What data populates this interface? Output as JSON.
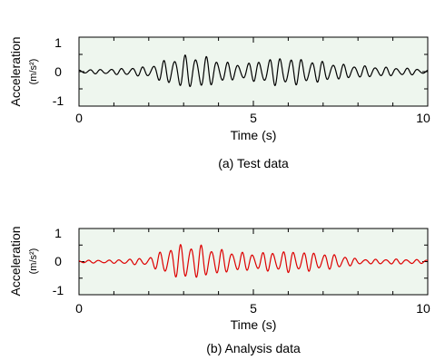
{
  "chart_data": [
    {
      "type": "line",
      "caption": "(a) Test data",
      "xlabel": "Time (s)",
      "ylabel": "Acceleration",
      "yunit": "(m/s²)",
      "xlim": [
        0,
        10
      ],
      "ylim": [
        -1,
        1
      ],
      "xticks": [
        0,
        5,
        10
      ],
      "yticks": [
        -1,
        0,
        1
      ],
      "background_color": "#eef6ee",
      "line_color": "#000000",
      "grid": false,
      "series": [
        {
          "dominant_freq_hz": 3.3,
          "x": [
            0,
            1,
            2,
            2.5,
            3,
            3.5,
            4,
            4.5,
            5,
            5.5,
            6,
            6.5,
            7,
            7.5,
            8,
            8.5,
            9,
            9.5,
            10
          ],
          "amplitude": [
            0.05,
            0.08,
            0.15,
            0.35,
            0.48,
            0.48,
            0.35,
            0.22,
            0.28,
            0.4,
            0.42,
            0.35,
            0.3,
            0.22,
            0.18,
            0.15,
            0.12,
            0.1,
            0.05
          ]
        }
      ]
    },
    {
      "type": "line",
      "caption": "(b) Analysis data",
      "xlabel": "Time (s)",
      "ylabel": "Acceleration",
      "yunit": "(m/s²)",
      "xlim": [
        0,
        10
      ],
      "ylim": [
        -1,
        1
      ],
      "xticks": [
        0,
        5,
        10
      ],
      "yticks": [
        -1,
        0,
        1
      ],
      "background_color": "#eef6ee",
      "line_color": "#dd0000",
      "grid": false,
      "series": [
        {
          "dominant_freq_hz": 3.4,
          "x": [
            0,
            1,
            2,
            2.5,
            3,
            3.5,
            4,
            4.5,
            5,
            5.5,
            6,
            6.5,
            7,
            7.5,
            8,
            8.5,
            9,
            9.5,
            10
          ],
          "amplitude": [
            0.04,
            0.05,
            0.12,
            0.4,
            0.55,
            0.5,
            0.38,
            0.3,
            0.26,
            0.3,
            0.33,
            0.3,
            0.25,
            0.2,
            0.08,
            0.07,
            0.08,
            0.07,
            0.05
          ]
        }
      ]
    }
  ]
}
